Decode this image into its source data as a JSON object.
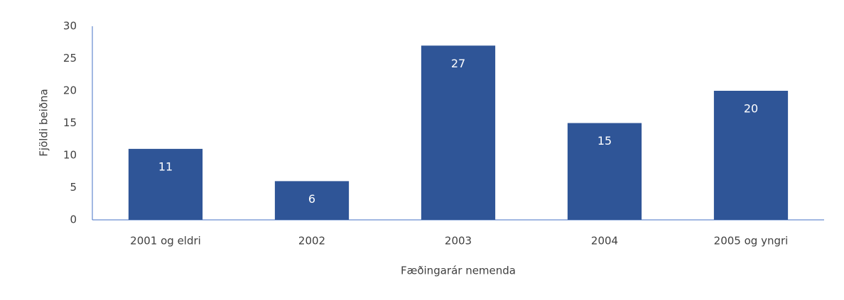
{
  "chart_data": {
    "type": "bar",
    "x_label": "Fæðingarár nemenda",
    "y_label": "Fjöldi beiðna",
    "categories": [
      "2001 og eldri",
      "2002",
      "2003",
      "2004",
      "2005 og yngri"
    ],
    "values": [
      11,
      6,
      27,
      15,
      20
    ],
    "color": "#2f5597",
    "ylim": [
      0,
      30
    ],
    "yticks": [
      0,
      5,
      10,
      15,
      20,
      25,
      30
    ],
    "grid": false
  }
}
